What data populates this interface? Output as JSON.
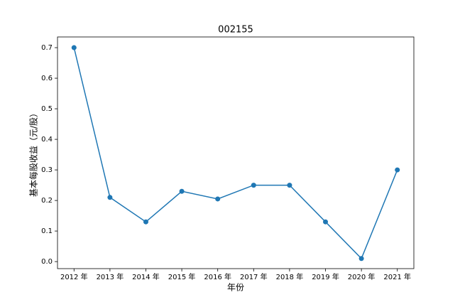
{
  "chart_data": {
    "type": "line",
    "title": "002155",
    "x_label": "年份",
    "y_label": "基本每股收益（元/股）",
    "categories": [
      "2012 年",
      "2013 年",
      "2014 年",
      "2015 年",
      "2016 年",
      "2017 年",
      "2018 年",
      "2019 年",
      "2020 年",
      "2021 年"
    ],
    "values": [
      0.7,
      0.21,
      0.13,
      0.23,
      0.205,
      0.25,
      0.25,
      0.13,
      0.01,
      0.3
    ],
    "color": "#1f77b4",
    "ylim": [
      -0.023,
      0.735
    ],
    "yticks": [
      {
        "value": 0,
        "label": "0.0"
      },
      0.1,
      0.2,
      0.3,
      0.4,
      0.5,
      0.6,
      0.7
    ],
    "grid": false,
    "markers": true
  }
}
